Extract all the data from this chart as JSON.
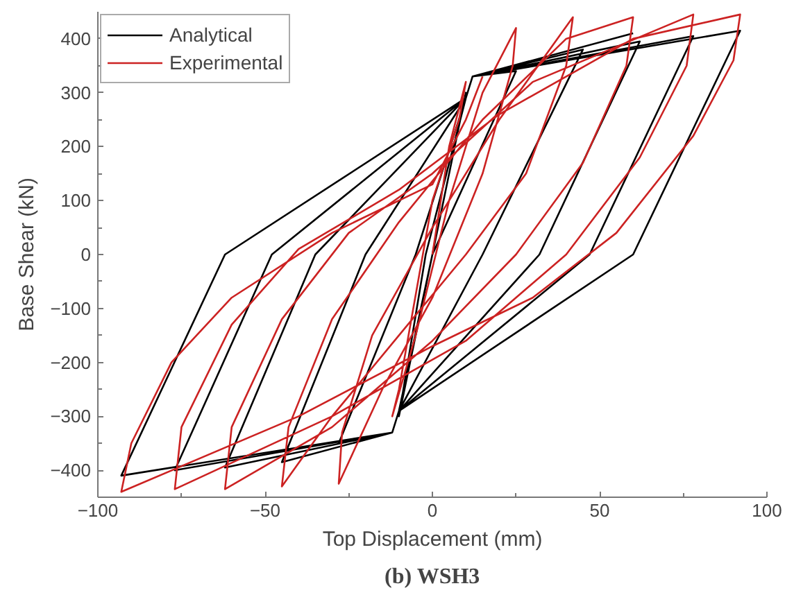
{
  "chart_data": {
    "type": "line",
    "xlabel": "Top Displacement (mm)",
    "ylabel": "Base Shear (kN)",
    "annotations": [
      "(b) WSH3"
    ],
    "xlim": [
      -100,
      100
    ],
    "xticks": [
      -100,
      -50,
      0,
      50,
      100
    ],
    "ylim": [
      -450,
      450
    ],
    "yticks": [
      -400,
      -300,
      -200,
      -100,
      0,
      100,
      200,
      300,
      400
    ],
    "grid": false,
    "legend": "top left",
    "marker": "none",
    "line_style": "solid",
    "series": [
      {
        "name": "Analytical",
        "color": "#000000",
        "x": [
          0,
          10,
          -10,
          -2,
          10,
          12,
          25,
          0,
          -10,
          -12,
          -28,
          -5,
          10,
          12,
          45,
          15,
          -10,
          -12,
          -45,
          -20,
          10,
          12,
          62,
          32,
          -10,
          -12,
          -62,
          -35,
          10,
          12,
          78,
          47,
          -10,
          -12,
          -77,
          -48,
          10,
          12,
          92,
          60,
          -10,
          -12,
          -93,
          -62,
          10,
          12,
          60
        ],
        "values": [
          0,
          300,
          -300,
          0,
          290,
          330,
          340,
          0,
          -290,
          -330,
          -350,
          0,
          290,
          330,
          380,
          0,
          -290,
          -330,
          -385,
          0,
          290,
          330,
          395,
          0,
          -290,
          -330,
          -395,
          0,
          290,
          330,
          405,
          0,
          -290,
          -330,
          -400,
          0,
          290,
          330,
          415,
          0,
          -290,
          -330,
          -410,
          0,
          290,
          330,
          410
        ]
      },
      {
        "name": "Experimental",
        "color": "#cc2222",
        "x": [
          0,
          5,
          10,
          8,
          0,
          -10,
          -12,
          -5,
          5,
          15,
          25,
          24,
          15,
          0,
          -15,
          -28,
          -27,
          -18,
          0,
          20,
          42,
          40,
          28,
          10,
          -10,
          -30,
          -45,
          -43,
          -30,
          -10,
          15,
          40,
          60,
          58,
          45,
          25,
          0,
          -30,
          -62,
          -60,
          -45,
          -25,
          0,
          30,
          78,
          76,
          62,
          40,
          10,
          -30,
          -77,
          -75,
          -60,
          -40,
          -10,
          20,
          60,
          92,
          90,
          78,
          55,
          30,
          0,
          -40,
          -93,
          -90,
          -78,
          -60,
          -30,
          0,
          10,
          15
        ],
        "values": [
          0,
          200,
          320,
          250,
          100,
          -250,
          -300,
          -150,
          100,
          300,
          420,
          350,
          150,
          -80,
          -250,
          -425,
          -330,
          -150,
          50,
          250,
          440,
          350,
          150,
          0,
          -150,
          -300,
          -430,
          -320,
          -120,
          60,
          250,
          400,
          440,
          350,
          170,
          0,
          -160,
          -320,
          -435,
          -320,
          -120,
          40,
          150,
          320,
          445,
          350,
          180,
          0,
          -160,
          -300,
          -435,
          -320,
          -130,
          10,
          120,
          260,
          400,
          445,
          360,
          220,
          40,
          -80,
          -170,
          -300,
          -440,
          -350,
          -200,
          -80,
          40,
          130,
          250,
          330
        ]
      }
    ]
  }
}
